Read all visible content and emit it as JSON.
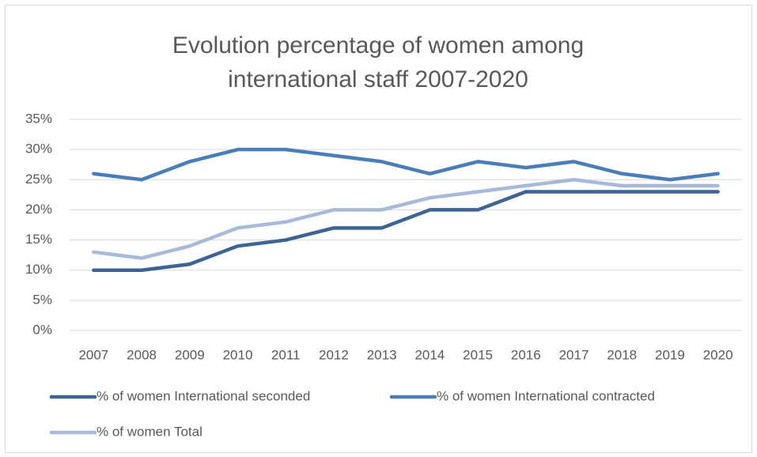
{
  "chart_data": {
    "type": "line",
    "title": "Evolution percentage of women among international staff 2007-2020",
    "categories": [
      "2007",
      "2008",
      "2009",
      "2010",
      "2011",
      "2012",
      "2013",
      "2014",
      "2015",
      "2016",
      "2017",
      "2018",
      "2019",
      "2020"
    ],
    "series": [
      {
        "name": "% of women International seconded",
        "color": "#3d6494",
        "values": [
          10,
          10,
          11,
          14,
          15,
          17,
          17,
          20,
          20,
          23,
          23,
          23,
          23,
          23
        ]
      },
      {
        "name": "% of women International contracted",
        "color": "#4a7ebb",
        "values": [
          26,
          25,
          28,
          30,
          30,
          29,
          28,
          26,
          28,
          27,
          28,
          26,
          25,
          26
        ]
      },
      {
        "name": "% of women Total",
        "color": "#a9bad8",
        "values": [
          13,
          12,
          14,
          17,
          18,
          20,
          20,
          22,
          23,
          24,
          25,
          24,
          24,
          24
        ]
      }
    ],
    "ylim": [
      0,
      35
    ],
    "yticks": [
      {
        "value": 0,
        "label": "0%"
      },
      {
        "value": 5,
        "label": "5%"
      },
      {
        "value": 10,
        "label": "10%"
      },
      {
        "value": 15,
        "label": "15%"
      },
      {
        "value": 20,
        "label": "20%"
      },
      {
        "value": 25,
        "label": "25%"
      },
      {
        "value": 30,
        "label": "30%"
      },
      {
        "value": 35,
        "label": "35%"
      }
    ],
    "grid": true,
    "legend": "bottom"
  }
}
